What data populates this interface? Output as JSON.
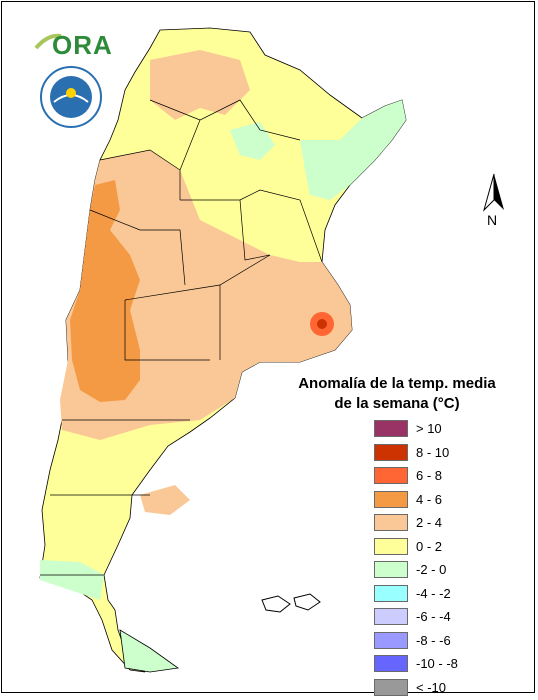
{
  "logo": {
    "ora_text": "ORA",
    "smn_ring_text": "SERVICIO METEOROLOGICO NACIONAL",
    "smn_country": "ARGENTINA"
  },
  "north_arrow": {
    "label": "N"
  },
  "legend": {
    "title_line1": "Anomalía de la temp. media",
    "title_line2": "de la semana (°C)",
    "items": [
      {
        "label": "> 10",
        "color": "#993366"
      },
      {
        "label": "8 - 10",
        "color": "#cc3300"
      },
      {
        "label": "6 - 8",
        "color": "#ff6633"
      },
      {
        "label": "4 - 6",
        "color": "#f49a45"
      },
      {
        "label": "2 - 4",
        "color": "#fac896"
      },
      {
        "label": "0 - 2",
        "color": "#ffff99"
      },
      {
        "label": "-2 - 0",
        "color": "#ccffcc"
      },
      {
        "label": "-4 - -2",
        "color": "#99ffff"
      },
      {
        "label": "-6 - -4",
        "color": "#ccccff"
      },
      {
        "label": "-8 - -6",
        "color": "#9999ff"
      },
      {
        "label": "-10 - -8",
        "color": "#6666ff"
      },
      {
        "label": "< -10",
        "color": "#999999"
      }
    ]
  }
}
